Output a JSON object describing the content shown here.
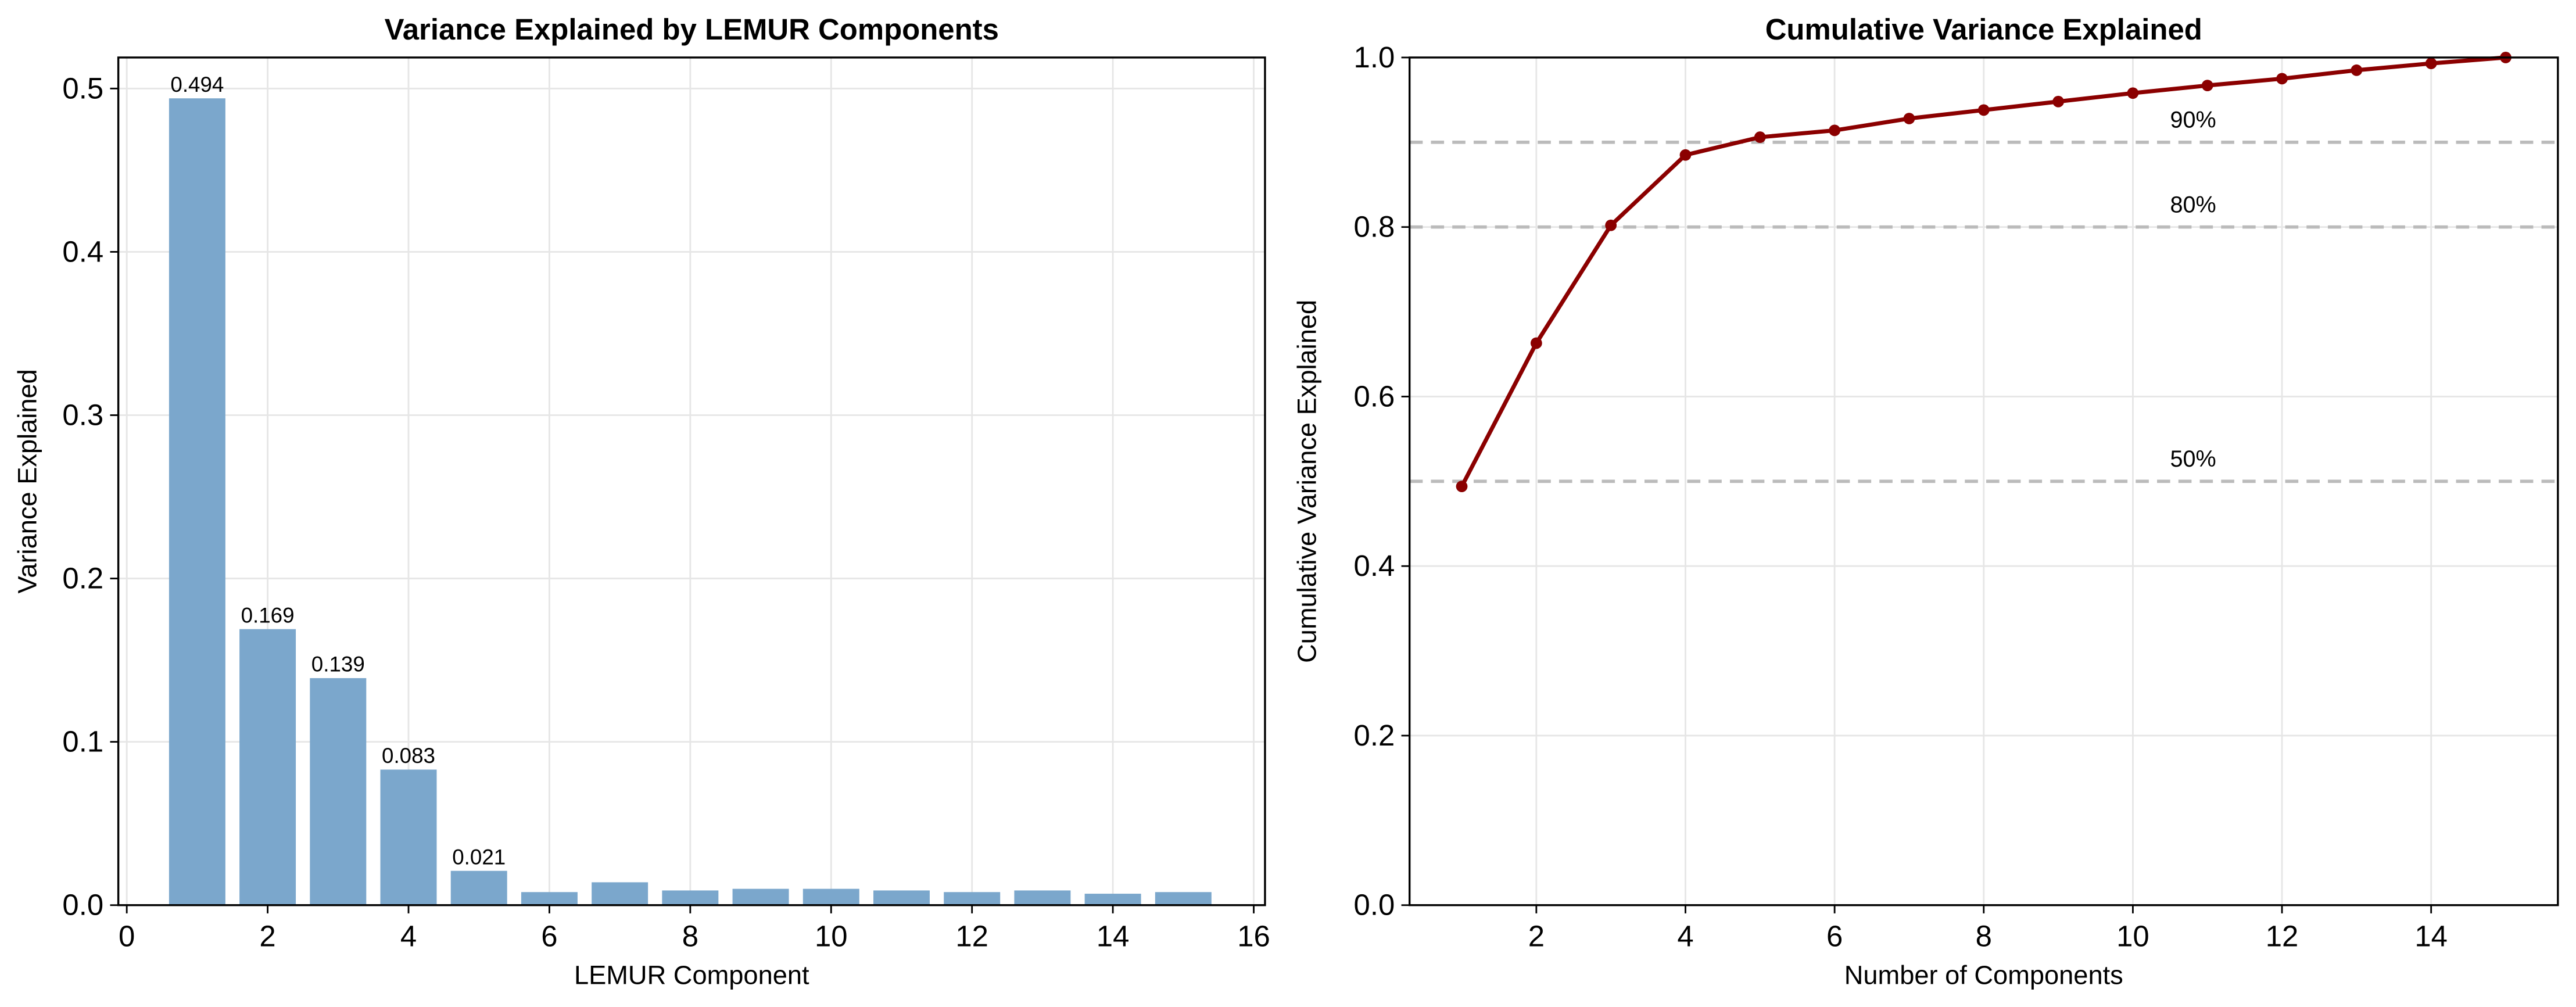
{
  "chart_data": [
    {
      "type": "bar",
      "title": "Variance Explained by LEMUR Components",
      "x_label": "LEMUR Component",
      "y_label": "Variance Explained",
      "x": [
        1,
        2,
        3,
        4,
        5,
        6,
        7,
        8,
        9,
        10,
        11,
        12,
        13,
        14,
        15
      ],
      "values": [
        0.494,
        0.169,
        0.139,
        0.083,
        0.021,
        0.008,
        0.014,
        0.009,
        0.01,
        0.01,
        0.009,
        0.008,
        0.009,
        0.007,
        0.008
      ],
      "value_labels": [
        "0.494",
        "0.169",
        "0.139",
        "0.083",
        "0.021",
        null,
        null,
        null,
        null,
        null,
        null,
        null,
        null,
        null,
        null
      ],
      "color": "#7ba7cc",
      "xlim": [
        -0.12,
        16.16
      ],
      "ylim": [
        0,
        0.519
      ],
      "xticks": [
        0,
        2,
        4,
        6,
        8,
        10,
        12,
        14,
        16
      ],
      "yticks": [
        0.0,
        0.1,
        0.2,
        0.3,
        0.4,
        0.5
      ],
      "grid": true
    },
    {
      "type": "line",
      "title": "Cumulative Variance Explained",
      "x_label": "Number of Components",
      "y_label": "Cumulative Variance Explained",
      "x": [
        1,
        2,
        3,
        4,
        5,
        6,
        7,
        8,
        9,
        10,
        11,
        12,
        13,
        14,
        15
      ],
      "values": [
        0.494,
        0.663,
        0.802,
        0.885,
        0.906,
        0.914,
        0.928,
        0.938,
        0.948,
        0.958,
        0.967,
        0.975,
        0.985,
        0.993,
        1.0
      ],
      "color": "#8b0000",
      "xlim": [
        0.3,
        15.7
      ],
      "ylim": [
        0,
        1
      ],
      "xticks": [
        2,
        4,
        6,
        8,
        10,
        12,
        14
      ],
      "yticks": [
        0.0,
        0.2,
        0.4,
        0.6,
        0.8,
        1.0
      ],
      "grid": true,
      "reference_lines": [
        {
          "value": 0.5,
          "label": "50%"
        },
        {
          "value": 0.8,
          "label": "80%"
        },
        {
          "value": 0.9,
          "label": "90%"
        }
      ]
    }
  ]
}
